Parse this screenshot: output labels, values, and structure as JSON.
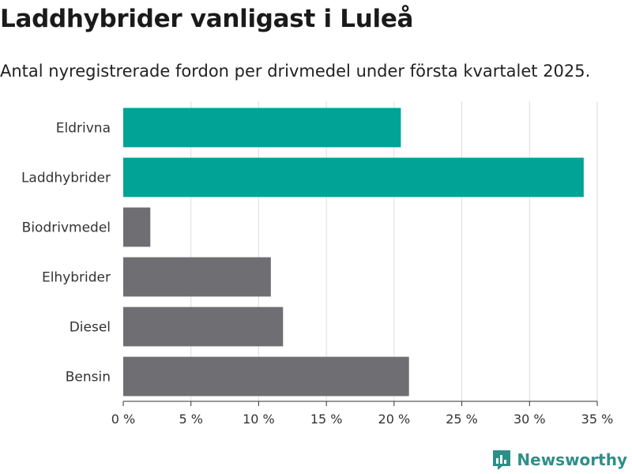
{
  "title": "Laddhybrider vanligast i Luleå",
  "subtitle": "Antal nyregistrerade fordon per drivmedel under första kvartalet 2025.",
  "brand": "Newsworthy",
  "colors": {
    "highlight": "#00a396",
    "default": "#6f6e73",
    "grid": "#dddddd",
    "axis": "#333333",
    "brand": "#2f8f87"
  },
  "chart_data": {
    "type": "bar",
    "orientation": "horizontal",
    "categories": [
      "Eldrivna",
      "Laddhybrider",
      "Biodrivmedel",
      "Elhybrider",
      "Diesel",
      "Bensin"
    ],
    "values": [
      20.5,
      34.0,
      2.0,
      10.9,
      11.8,
      21.1
    ],
    "highlighted": [
      true,
      true,
      false,
      false,
      false,
      false
    ],
    "xlim": [
      0,
      35
    ],
    "xticks": [
      0,
      5,
      10,
      15,
      20,
      25,
      30,
      35
    ],
    "xtick_labels": [
      "0 %",
      "5 %",
      "10 %",
      "15 %",
      "20 %",
      "25 %",
      "30 %",
      "35 %"
    ],
    "grid": "vertical",
    "xlabel": "",
    "ylabel": ""
  }
}
